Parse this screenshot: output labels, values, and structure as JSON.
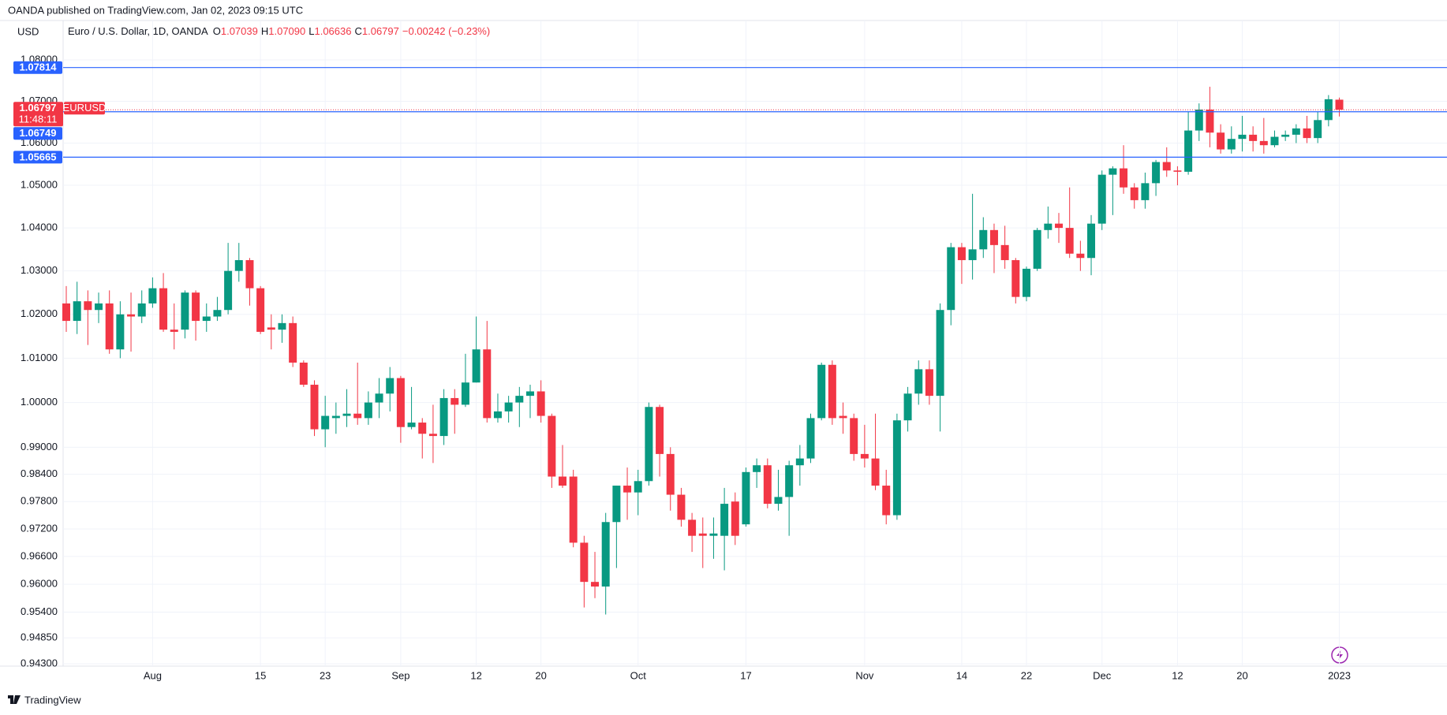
{
  "chart_data": {
    "type": "candlestick",
    "title": "OANDA published on TradingView.com, Jan 02, 2023 09:15 UTC",
    "currency": "USD",
    "symbol_title": "Euro / U.S. Dollar, 1D, OANDA",
    "ohlc_prefixes": [
      "O",
      "H",
      "L",
      "C"
    ],
    "last_labels": {
      "open": "1.07039",
      "high": "1.07090",
      "low": "1.06636",
      "close": "1.06797"
    },
    "change": "−0.00242 (−0.23%)",
    "countdown": "11:48:11",
    "symbol": "EURUSD",
    "brand": "TradingView",
    "up_color": "#089981",
    "down_color": "#f23645",
    "level_color": "#2962ff",
    "levels": [
      {
        "value": 1.07814,
        "label": "1.07814"
      },
      {
        "value": 1.06749,
        "label": "1.06749"
      },
      {
        "value": 1.05665,
        "label": "1.05665"
      }
    ],
    "log_scale": true,
    "grid": true,
    "ylim": [
      0.9425,
      1.0896
    ],
    "yticks": [
      {
        "value": 1.08,
        "label": "1.08000"
      },
      {
        "value": 1.07,
        "label": "1.07000"
      },
      {
        "value": 1.06,
        "label": "1.06000"
      },
      {
        "value": 1.05,
        "label": "1.05000"
      },
      {
        "value": 1.04,
        "label": "1.04000"
      },
      {
        "value": 1.03,
        "label": "1.03000"
      },
      {
        "value": 1.02,
        "label": "1.02000"
      },
      {
        "value": 1.01,
        "label": "1.01000"
      },
      {
        "value": 1.0,
        "label": "1.00000"
      },
      {
        "value": 0.99,
        "label": "0.99000"
      },
      {
        "value": 0.984,
        "label": "0.98400"
      },
      {
        "value": 0.978,
        "label": "0.97800"
      },
      {
        "value": 0.972,
        "label": "0.97200"
      },
      {
        "value": 0.966,
        "label": "0.96600"
      },
      {
        "value": 0.96,
        "label": "0.96000"
      },
      {
        "value": 0.954,
        "label": "0.95400"
      },
      {
        "value": 0.9485,
        "label": "0.94850"
      },
      {
        "value": 0.943,
        "label": "0.94300"
      }
    ],
    "categories": [
      null,
      null,
      null,
      null,
      null,
      null,
      null,
      null,
      "Aug",
      null,
      null,
      null,
      null,
      null,
      null,
      null,
      null,
      null,
      "15",
      null,
      null,
      null,
      null,
      null,
      "23",
      null,
      null,
      null,
      null,
      null,
      null,
      "Sep",
      null,
      null,
      null,
      null,
      null,
      null,
      "12",
      null,
      null,
      null,
      null,
      null,
      "20",
      null,
      null,
      null,
      null,
      null,
      null,
      null,
      null,
      "Oct",
      null,
      null,
      null,
      null,
      null,
      null,
      null,
      null,
      null,
      "17",
      null,
      null,
      null,
      null,
      null,
      null,
      null,
      null,
      null,
      null,
      "Nov",
      null,
      null,
      null,
      null,
      null,
      null,
      null,
      null,
      "14",
      null,
      null,
      null,
      null,
      null,
      "22",
      null,
      null,
      null,
      null,
      null,
      null,
      "Dec",
      null,
      null,
      null,
      null,
      null,
      null,
      "12",
      null,
      null,
      null,
      null,
      null,
      "20",
      null,
      null,
      null,
      null,
      null,
      null,
      null,
      null,
      "2023"
    ],
    "open": [
      1.0225,
      1.0185,
      1.023,
      1.021,
      1.0225,
      1.012,
      1.02,
      1.0195,
      1.0225,
      1.026,
      1.0165,
      1.0165,
      1.025,
      1.0185,
      1.0195,
      1.021,
      1.03,
      1.0325,
      1.026,
      1.017,
      1.0165,
      1.018,
      1.009,
      1.004,
      0.994,
      0.9965,
      0.997,
      0.9975,
      0.9965,
      1.0,
      1.002,
      1.0055,
      0.9945,
      0.9955,
      0.993,
      0.9925,
      1.001,
      0.9995,
      1.0045,
      1.012,
      0.9965,
      0.998,
      1.0,
      1.0015,
      1.0025,
      0.997,
      0.9835,
      0.9835,
      0.969,
      0.9605,
      0.9595,
      0.9735,
      0.9815,
      0.98,
      0.9825,
      0.999,
      0.9885,
      0.9795,
      0.974,
      0.971,
      0.9705,
      0.9705,
      0.978,
      0.973,
      0.9845,
      0.986,
      0.9775,
      0.979,
      0.986,
      0.9875,
      0.9965,
      1.0085,
      0.997,
      0.9965,
      0.9885,
      0.9875,
      0.9815,
      0.975,
      0.996,
      1.002,
      1.0075,
      1.0015,
      1.021,
      1.0355,
      1.0325,
      1.035,
      1.0395,
      1.036,
      1.0325,
      1.024,
      1.0305,
      1.0395,
      1.041,
      1.04,
      1.034,
      1.033,
      1.041,
      1.0525,
      1.054,
      1.0495,
      1.0465,
      1.0505,
      1.0555,
      1.0535,
      1.0532,
      1.063,
      1.068,
      1.0625,
      1.0585,
      1.061,
      1.062,
      1.0605,
      1.0595,
      1.0615,
      1.062,
      1.0635,
      1.0612,
      1.0655,
      1.07039
    ],
    "high": [
      1.0265,
      1.0275,
      1.0255,
      1.025,
      1.0255,
      1.023,
      1.025,
      1.0255,
      1.0285,
      1.0295,
      1.0225,
      1.0255,
      1.0255,
      1.0225,
      1.024,
      1.0365,
      1.0365,
      1.033,
      1.0265,
      1.02,
      1.02,
      1.0195,
      1.0095,
      1.005,
      1.0015,
      1.0,
      1.003,
      1.009,
      1.0025,
      1.0055,
      1.008,
      1.006,
      1.0035,
      0.9965,
      0.9995,
      1.003,
      1.003,
      1.011,
      1.0195,
      1.0185,
      1.002,
      1.0015,
      1.0035,
      1.004,
      1.005,
      0.9975,
      0.9905,
      0.985,
      0.9705,
      0.967,
      0.9755,
      0.9815,
      0.9855,
      0.985,
      1.0,
      0.9995,
      0.99,
      0.981,
      0.9755,
      0.9745,
      0.9745,
      0.981,
      0.98,
      0.9855,
      0.9875,
      0.9875,
      0.985,
      0.987,
      0.9905,
      0.9975,
      1.009,
      1.0095,
      1.0,
      0.9975,
      0.995,
      0.9975,
      0.985,
      0.9975,
      1.0035,
      1.0095,
      1.0095,
      1.0225,
      1.0365,
      1.0365,
      1.048,
      1.0425,
      1.041,
      1.0405,
      1.033,
      1.031,
      1.04,
      1.045,
      1.0435,
      1.0495,
      1.037,
      1.043,
      1.0535,
      1.0545,
      1.0595,
      1.0505,
      1.053,
      1.056,
      1.059,
      1.0545,
      1.0675,
      1.0695,
      1.0735,
      1.0645,
      1.064,
      1.0665,
      1.064,
      1.066,
      1.063,
      1.063,
      1.0645,
      1.0665,
      1.0675,
      1.0715,
      1.0709
    ],
    "low": [
      1.016,
      1.0155,
      1.013,
      1.018,
      1.011,
      1.01,
      1.0115,
      1.018,
      1.0215,
      1.016,
      1.012,
      1.0145,
      1.014,
      1.016,
      1.0185,
      1.02,
      1.0275,
      1.022,
      1.0155,
      1.012,
      1.0135,
      1.008,
      1.0035,
      0.9925,
      0.99,
      0.993,
      0.9945,
      0.995,
      0.995,
      0.9965,
      0.998,
      0.991,
      0.994,
      0.9875,
      0.9865,
      0.9905,
      0.993,
      0.999,
      1.0045,
      0.9955,
      0.9955,
      0.9955,
      0.9945,
      0.9965,
      0.9955,
      0.981,
      0.981,
      0.968,
      0.955,
      0.957,
      0.9535,
      0.9635,
      0.974,
      0.975,
      0.9815,
      0.9835,
      0.976,
      0.9725,
      0.967,
      0.9635,
      0.9655,
      0.963,
      0.9685,
      0.9725,
      0.981,
      0.9765,
      0.976,
      0.9705,
      0.9815,
      0.9865,
      0.996,
      0.995,
      0.993,
      0.987,
      0.9855,
      0.9805,
      0.973,
      0.974,
      0.9935,
      0.9995,
      0.9995,
      0.9935,
      1.0175,
      1.027,
      1.028,
      1.033,
      1.0295,
      1.0305,
      1.0225,
      1.023,
      1.03,
      1.0375,
      1.0365,
      1.033,
      1.03,
      1.029,
      1.0395,
      1.043,
      1.048,
      1.0445,
      1.0445,
      1.0475,
      1.052,
      1.05,
      1.0525,
      1.0605,
      1.059,
      1.0575,
      1.0575,
      1.058,
      1.058,
      1.0575,
      1.059,
      1.0605,
      1.06,
      1.06,
      1.06,
      1.064,
      1.06636
    ],
    "close": [
      1.0185,
      1.023,
      1.021,
      1.0225,
      1.012,
      1.02,
      1.0195,
      1.0225,
      1.026,
      1.0165,
      1.016,
      1.025,
      1.0185,
      1.0195,
      1.021,
      1.03,
      1.0325,
      1.026,
      1.016,
      1.0165,
      1.018,
      1.009,
      1.004,
      0.994,
      0.997,
      0.997,
      0.9975,
      0.9965,
      1.0,
      1.002,
      1.0055,
      0.9945,
      0.9955,
      0.993,
      0.9925,
      1.001,
      0.9995,
      1.0045,
      1.012,
      0.9965,
      0.998,
      1.0,
      1.0015,
      1.0025,
      0.997,
      0.9835,
      0.9815,
      0.969,
      0.9605,
      0.9595,
      0.9735,
      0.9815,
      0.98,
      0.9825,
      0.999,
      0.9885,
      0.9795,
      0.974,
      0.9705,
      0.9705,
      0.971,
      0.9775,
      0.9705,
      0.9845,
      0.986,
      0.9775,
      0.979,
      0.986,
      0.9875,
      0.9965,
      1.0085,
      0.9965,
      0.9965,
      0.9885,
      0.9875,
      0.9815,
      0.975,
      0.996,
      1.002,
      1.0075,
      1.0015,
      1.021,
      1.0355,
      1.0325,
      1.035,
      1.0395,
      1.036,
      1.0325,
      1.024,
      1.0305,
      1.0395,
      1.041,
      1.04,
      1.034,
      1.033,
      1.041,
      1.0525,
      1.054,
      1.0495,
      1.0465,
      1.0505,
      1.0555,
      1.0535,
      1.0532,
      1.063,
      1.068,
      1.0625,
      1.0585,
      1.061,
      1.062,
      1.0605,
      1.0595,
      1.0615,
      1.062,
      1.0635,
      1.0612,
      1.0655,
      1.0705,
      1.06797
    ]
  }
}
